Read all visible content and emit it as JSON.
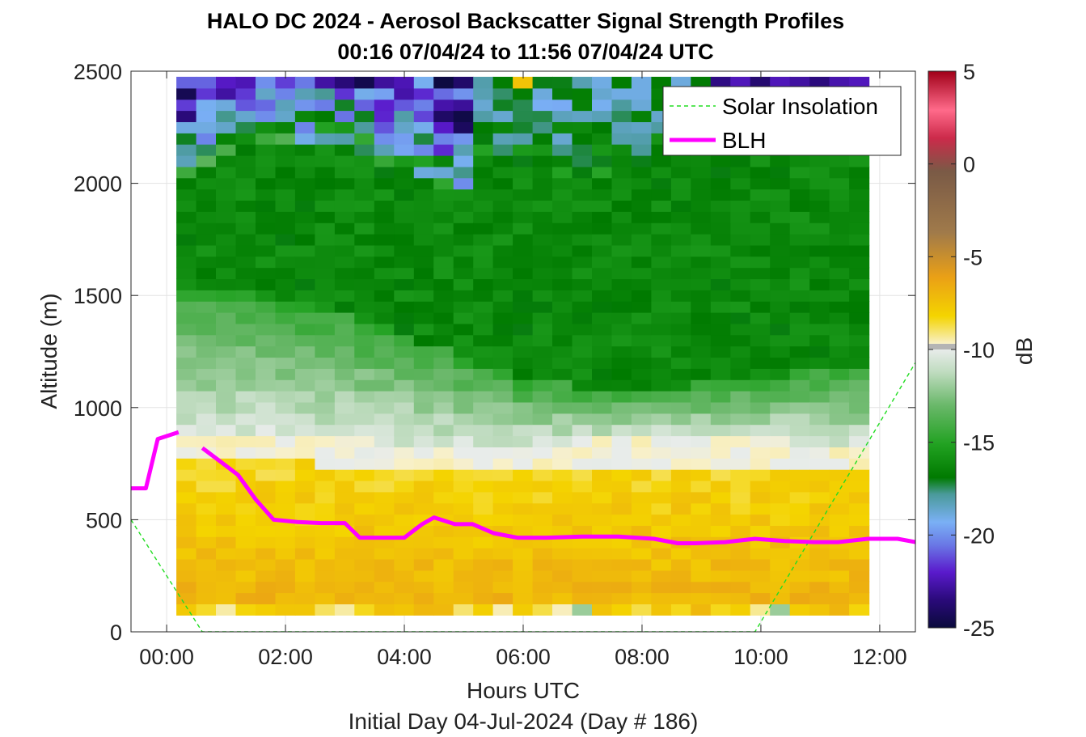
{
  "chart_data": {
    "type": "heatmap",
    "title": "HALO DC 2024 - Aerosol Backscatter Signal Strength Profiles",
    "subtitle": "00:16 07/04/24 to 11:56 07/04/24  UTC",
    "xlabel": "Hours UTC",
    "footer": "Initial Day 04-Jul-2024 (Day # 186)",
    "ylabel": "Altitude (m)",
    "colorbar_label": "dB",
    "xlim": [
      -0.6,
      12.6
    ],
    "ylim": [
      0,
      2500
    ],
    "x_ticks": [
      0,
      2,
      4,
      6,
      8,
      10,
      12
    ],
    "x_tick_labels": [
      "00:00",
      "02:00",
      "04:00",
      "06:00",
      "08:00",
      "10:00",
      "12:00"
    ],
    "y_ticks": [
      0,
      500,
      1000,
      1500,
      2000,
      2500
    ],
    "y_tick_labels": [
      "0",
      "500",
      "1000",
      "1500",
      "2000",
      "2500"
    ],
    "clim": [
      -25,
      5
    ],
    "colorbar_ticks": [
      5,
      0,
      -5,
      -10,
      -15,
      -20,
      -25
    ],
    "colorbar_tick_labels": [
      "5",
      "0",
      "-5",
      "-10",
      "-15",
      "-20",
      "-25"
    ],
    "grid": true,
    "legend_position": "top-right",
    "heatmap": {
      "x_start": 0.33,
      "x_step": 0.333,
      "columns": 35,
      "y_start": 100,
      "y_step": 50,
      "rows": 48,
      "value_description": "backscatter signal strength in dB"
    },
    "series": [
      {
        "name": "Solar Insolation",
        "style": "dashed",
        "color": "#22dd22",
        "x": [
          -0.6,
          0.6,
          9.9,
          12.6
        ],
        "y": [
          500,
          0,
          0,
          1200
        ]
      },
      {
        "name": "BLH",
        "style": "solid",
        "color": "#ff00ff",
        "segments": [
          {
            "x": [
              -0.6,
              -0.35,
              -0.15,
              0.2
            ],
            "y": [
              640,
              640,
              860,
              890
            ]
          },
          {
            "x": [
              0.6,
              0.9,
              1.2,
              1.5,
              1.8,
              2.2,
              2.6,
              3.0,
              3.25,
              3.6,
              4.0,
              4.3,
              4.5,
              4.85,
              5.15,
              5.5,
              5.9,
              6.4,
              7.0,
              7.6,
              8.2,
              8.6,
              8.9,
              9.4,
              9.9,
              10.4,
              10.9,
              11.3,
              11.8,
              12.3,
              12.6
            ]
          },
          {
            "y": [
              820,
              760,
              700,
              590,
              500,
              490,
              485,
              485,
              420,
              420,
              420,
              480,
              510,
              480,
              480,
              440,
              420,
              420,
              425,
              425,
              415,
              395,
              395,
              400,
              415,
              405,
              400,
              400,
              415,
              415,
              400
            ]
          }
        ]
      }
    ]
  },
  "colors": {
    "colorbar_stops": [
      "#0a0a3c",
      "#2a0a7a",
      "#5a1acc",
      "#6a7ae6",
      "#7ab0f5",
      "#4a9a9a",
      "#007a00",
      "#22a222",
      "#6ab86a",
      "#c0dcc0",
      "#e8ecea",
      "#b4b4b4",
      "#f8f0c8",
      "#f4d400",
      "#eaa016",
      "#a07a4a",
      "#7a5a46",
      "#cc2a4a",
      "#ff6a8a",
      "#a00018"
    ],
    "blh": "#ff00ff",
    "insolation": "#22dd22"
  }
}
